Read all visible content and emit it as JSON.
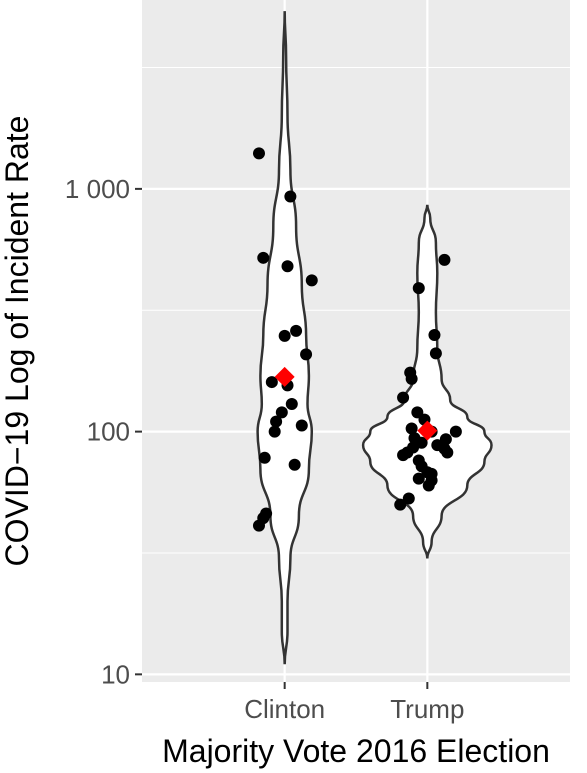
{
  "chart_data": {
    "type": "violin",
    "xlabel": "Majority Vote 2016 Election",
    "ylabel": "COVID−19 Log of Incident Rate",
    "y_scale": "log10",
    "ylim": [
      9.3,
      6000
    ],
    "y_ticks": [
      {
        "value": 10,
        "label": "10"
      },
      {
        "value": 100,
        "label": "100"
      },
      {
        "value": 1000,
        "label": "1 000"
      }
    ],
    "categories": [
      "Clinton",
      "Trump"
    ],
    "groups": [
      {
        "name": "Clinton",
        "points": [
          {
            "dx": -0.18,
            "y": 1400
          },
          {
            "dx": 0.04,
            "y": 930
          },
          {
            "dx": -0.15,
            "y": 520
          },
          {
            "dx": 0.02,
            "y": 480
          },
          {
            "dx": 0.19,
            "y": 420
          },
          {
            "dx": 0.08,
            "y": 260
          },
          {
            "dx": 0.0,
            "y": 248
          },
          {
            "dx": 0.15,
            "y": 208
          },
          {
            "dx": -0.09,
            "y": 160
          },
          {
            "dx": 0.02,
            "y": 155
          },
          {
            "dx": 0.05,
            "y": 130
          },
          {
            "dx": -0.02,
            "y": 120
          },
          {
            "dx": -0.06,
            "y": 110
          },
          {
            "dx": 0.12,
            "y": 106
          },
          {
            "dx": -0.07,
            "y": 100
          },
          {
            "dx": -0.14,
            "y": 78
          },
          {
            "dx": 0.07,
            "y": 73
          },
          {
            "dx": -0.13,
            "y": 46
          },
          {
            "dx": -0.15,
            "y": 44
          },
          {
            "dx": -0.18,
            "y": 41
          }
        ],
        "mean": 168,
        "violin": [
          {
            "y": 11,
            "w": 0.0
          },
          {
            "y": 15,
            "w": 0.02
          },
          {
            "y": 20,
            "w": 0.02
          },
          {
            "y": 30,
            "w": 0.04
          },
          {
            "y": 45,
            "w": 0.1
          },
          {
            "y": 70,
            "w": 0.17
          },
          {
            "y": 100,
            "w": 0.19
          },
          {
            "y": 130,
            "w": 0.16
          },
          {
            "y": 170,
            "w": 0.17
          },
          {
            "y": 250,
            "w": 0.15
          },
          {
            "y": 400,
            "w": 0.12
          },
          {
            "y": 700,
            "w": 0.08
          },
          {
            "y": 1200,
            "w": 0.04
          },
          {
            "y": 2000,
            "w": 0.02
          },
          {
            "y": 3500,
            "w": 0.01
          },
          {
            "y": 5400,
            "w": 0.0
          }
        ]
      },
      {
        "name": "Trump",
        "points": [
          {
            "dx": 0.12,
            "y": 510
          },
          {
            "dx": -0.06,
            "y": 390
          },
          {
            "dx": 0.05,
            "y": 250
          },
          {
            "dx": 0.06,
            "y": 210
          },
          {
            "dx": -0.12,
            "y": 175
          },
          {
            "dx": -0.11,
            "y": 165
          },
          {
            "dx": -0.17,
            "y": 138
          },
          {
            "dx": -0.07,
            "y": 120
          },
          {
            "dx": -0.02,
            "y": 112
          },
          {
            "dx": -0.11,
            "y": 103
          },
          {
            "dx": 0.01,
            "y": 101
          },
          {
            "dx": 0.03,
            "y": 100
          },
          {
            "dx": 0.2,
            "y": 100
          },
          {
            "dx": -0.09,
            "y": 94
          },
          {
            "dx": 0.13,
            "y": 93
          },
          {
            "dx": -0.04,
            "y": 90
          },
          {
            "dx": 0.07,
            "y": 88
          },
          {
            "dx": -0.1,
            "y": 86
          },
          {
            "dx": 0.12,
            "y": 85
          },
          {
            "dx": -0.17,
            "y": 80
          },
          {
            "dx": -0.14,
            "y": 82
          },
          {
            "dx": 0.14,
            "y": 82
          },
          {
            "dx": -0.06,
            "y": 76
          },
          {
            "dx": -0.04,
            "y": 72
          },
          {
            "dx": 0.0,
            "y": 68
          },
          {
            "dx": 0.03,
            "y": 67
          },
          {
            "dx": -0.06,
            "y": 64
          },
          {
            "dx": 0.03,
            "y": 63
          },
          {
            "dx": 0.01,
            "y": 60
          },
          {
            "dx": -0.13,
            "y": 53
          },
          {
            "dx": -0.19,
            "y": 50
          }
        ],
        "mean": 101,
        "violin": [
          {
            "y": 30,
            "w": 0.0
          },
          {
            "y": 35,
            "w": 0.03
          },
          {
            "y": 45,
            "w": 0.1
          },
          {
            "y": 60,
            "w": 0.28
          },
          {
            "y": 75,
            "w": 0.4
          },
          {
            "y": 88,
            "w": 0.45
          },
          {
            "y": 100,
            "w": 0.4
          },
          {
            "y": 115,
            "w": 0.28
          },
          {
            "y": 135,
            "w": 0.16
          },
          {
            "y": 165,
            "w": 0.1
          },
          {
            "y": 220,
            "w": 0.07
          },
          {
            "y": 310,
            "w": 0.06
          },
          {
            "y": 450,
            "w": 0.07
          },
          {
            "y": 600,
            "w": 0.06
          },
          {
            "y": 760,
            "w": 0.02
          },
          {
            "y": 860,
            "w": 0.0
          }
        ]
      }
    ],
    "mean_marker_color": "#ff0000",
    "point_color": "#000000",
    "panel_background": "#ebebeb",
    "grid": true
  }
}
